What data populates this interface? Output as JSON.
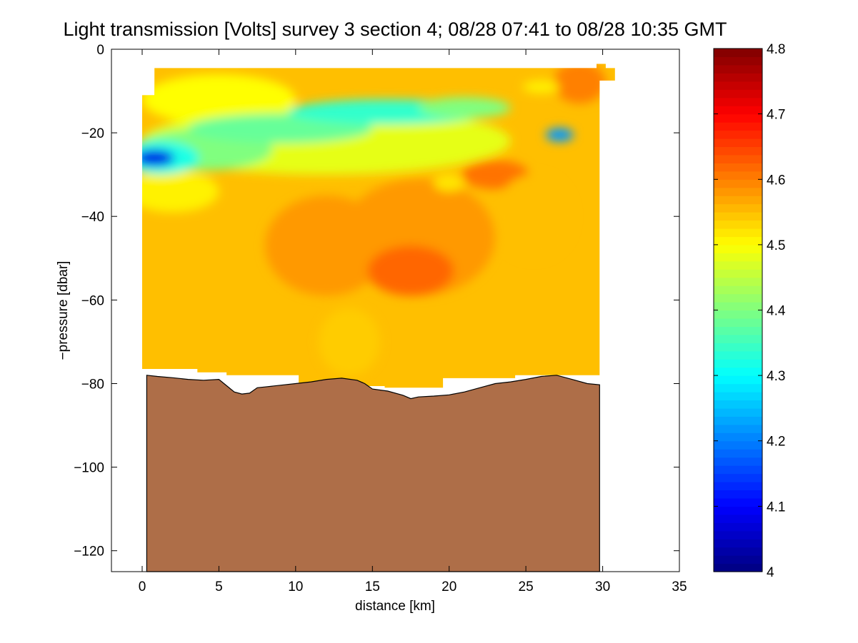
{
  "chart_data": {
    "type": "heatmap",
    "title": "Light transmission [Volts] survey 3 section 4; 08/28 07:41 to 08/28 10:35 GMT",
    "xlabel": "distance [km]",
    "ylabel": "−pressure [dbar]",
    "xlim": [
      -2,
      35
    ],
    "ylim": [
      -125,
      0
    ],
    "xticks": [
      0,
      5,
      10,
      15,
      20,
      25,
      30,
      35
    ],
    "yticks": [
      0,
      -20,
      -40,
      -60,
      -80,
      -100,
      -120
    ],
    "xtick_labels": [
      "0",
      "5",
      "10",
      "15",
      "20",
      "25",
      "30",
      "35"
    ],
    "ytick_labels": [
      "0",
      "−20",
      "−40",
      "−60",
      "−80",
      "−100",
      "−120"
    ],
    "colorbar": {
      "range": [
        4,
        4.8
      ],
      "ticks": [
        4,
        4.1,
        4.2,
        4.3,
        4.4,
        4.5,
        4.6,
        4.7,
        4.8
      ],
      "tick_labels": [
        "4",
        "4.1",
        "4.2",
        "4.3",
        "4.4",
        "4.5",
        "4.6",
        "4.7",
        "4.8"
      ],
      "colormap": "jet"
    },
    "field": {
      "background_value": 4.55,
      "data_outline": [
        [
          0,
          -11
        ],
        [
          0.8,
          -11
        ],
        [
          0.8,
          -4.5
        ],
        [
          29.6,
          -4.5
        ],
        [
          29.6,
          -3.5
        ],
        [
          30.2,
          -3.5
        ],
        [
          30.2,
          -4.5
        ],
        [
          30.8,
          -4.5
        ],
        [
          30.8,
          -7.5
        ],
        [
          29.8,
          -7.5
        ],
        [
          29.8,
          -78
        ],
        [
          24.3,
          -78
        ],
        [
          24.3,
          -78.7
        ],
        [
          19.6,
          -78.7
        ],
        [
          19.6,
          -81
        ],
        [
          15.8,
          -81
        ],
        [
          15.8,
          -80.6
        ],
        [
          10.2,
          -80.6
        ],
        [
          10.2,
          -78
        ],
        [
          5.5,
          -78
        ],
        [
          5.5,
          -77.3
        ],
        [
          3.6,
          -77.3
        ],
        [
          3.6,
          -76.5
        ],
        [
          0,
          -76.5
        ]
      ],
      "features": [
        {
          "x": 5,
          "y": -12,
          "rx": 5,
          "ry": 6,
          "value": 4.5
        },
        {
          "x": 12,
          "y": -22,
          "rx": 12,
          "ry": 8,
          "value": 4.48
        },
        {
          "x": 2,
          "y": -34,
          "rx": 3,
          "ry": 5,
          "value": 4.51
        },
        {
          "x": 4,
          "y": -24,
          "rx": 4.5,
          "ry": 5,
          "value": 4.4
        },
        {
          "x": 1.2,
          "y": -26,
          "rx": 2.5,
          "ry": 4,
          "value": 4.32
        },
        {
          "x": 9,
          "y": -19,
          "rx": 6,
          "ry": 3.5,
          "value": 4.38
        },
        {
          "x": 16,
          "y": -15,
          "rx": 6.5,
          "ry": 3,
          "value": 4.34
        },
        {
          "x": 21,
          "y": -14,
          "rx": 3,
          "ry": 2.5,
          "value": 4.4
        },
        {
          "x": 0.8,
          "y": -26,
          "rx": 1.3,
          "ry": 2,
          "value": 4.08
        },
        {
          "x": 27.2,
          "y": -20.5,
          "rx": 0.9,
          "ry": 1.6,
          "value": 4.22
        },
        {
          "x": 12,
          "y": -47,
          "rx": 4,
          "ry": 12,
          "value": 4.58
        },
        {
          "x": 18,
          "y": -45,
          "rx": 5,
          "ry": 14,
          "value": 4.58
        },
        {
          "x": 17.5,
          "y": -53,
          "rx": 2.8,
          "ry": 6,
          "value": 4.62
        },
        {
          "x": 23,
          "y": -30,
          "rx": 2.2,
          "ry": 3.5,
          "value": 4.61
        },
        {
          "x": 28.5,
          "y": -8,
          "rx": 1.7,
          "ry": 5,
          "value": 4.6
        },
        {
          "x": 25.5,
          "y": -40,
          "rx": 2.5,
          "ry": 10,
          "value": 4.55
        },
        {
          "x": 13.5,
          "y": -70,
          "rx": 2,
          "ry": 8,
          "value": 4.54
        },
        {
          "x": 20,
          "y": -32,
          "rx": 1,
          "ry": 2,
          "value": 4.52
        },
        {
          "x": 26,
          "y": -9,
          "rx": 1.2,
          "ry": 1.5,
          "value": 4.51
        }
      ]
    },
    "bathymetry": {
      "color": "#ae6e48",
      "x": [
        0.3,
        1,
        2,
        3,
        4,
        5,
        5.5,
        6,
        6.5,
        7,
        7.5,
        8,
        9,
        10,
        11,
        12,
        13,
        14,
        14.5,
        15,
        16,
        17,
        17.5,
        18,
        19,
        20,
        21,
        22,
        23,
        24,
        25,
        26,
        27,
        28,
        29,
        29.8
      ],
      "y": [
        -78,
        -78.3,
        -78.6,
        -79,
        -79.2,
        -79,
        -80.5,
        -82,
        -82.5,
        -82.3,
        -81,
        -80.8,
        -80.4,
        -80,
        -79.6,
        -79,
        -78.7,
        -79.2,
        -80,
        -81.3,
        -81.8,
        -82.8,
        -83.6,
        -83.2,
        -83,
        -82.7,
        -82,
        -81,
        -80,
        -79.6,
        -79,
        -78.3,
        -78,
        -79,
        -80,
        -80.3
      ]
    }
  }
}
